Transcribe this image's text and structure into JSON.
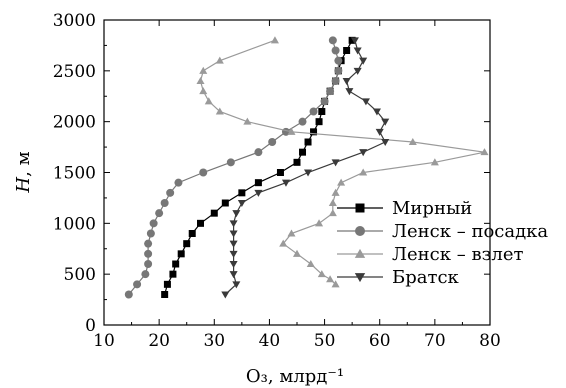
{
  "chart_data": {
    "type": "line",
    "xlabel": "O₃, млрд⁻¹",
    "ylabel_symbol": "H",
    "ylabel_unit": ", м",
    "xlim": [
      10,
      80
    ],
    "ylim": [
      0,
      3000
    ],
    "xticks": [
      10,
      20,
      30,
      40,
      50,
      60,
      70,
      80
    ],
    "yticks": [
      0,
      500,
      1000,
      1500,
      2000,
      2500,
      3000
    ],
    "grid": false,
    "legend_position": "right",
    "series": [
      {
        "name": "Мирный",
        "marker": "square",
        "color": "#000000",
        "points": [
          [
            21,
            300
          ],
          [
            21.5,
            400
          ],
          [
            22.5,
            500
          ],
          [
            23,
            600
          ],
          [
            24,
            700
          ],
          [
            25,
            800
          ],
          [
            26,
            900
          ],
          [
            27.5,
            1000
          ],
          [
            30,
            1100
          ],
          [
            32,
            1200
          ],
          [
            35,
            1300
          ],
          [
            38,
            1400
          ],
          [
            42,
            1500
          ],
          [
            45,
            1600
          ],
          [
            46,
            1700
          ],
          [
            47,
            1800
          ],
          [
            48,
            1900
          ],
          [
            49,
            2000
          ],
          [
            49.5,
            2100
          ],
          [
            50,
            2200
          ],
          [
            51,
            2300
          ],
          [
            52,
            2400
          ],
          [
            52.5,
            2500
          ],
          [
            53,
            2600
          ],
          [
            54,
            2700
          ],
          [
            55,
            2800
          ]
        ]
      },
      {
        "name": "Ленск – посадка",
        "marker": "circle",
        "color": "#777777",
        "points": [
          [
            14.5,
            300
          ],
          [
            16,
            400
          ],
          [
            17.5,
            500
          ],
          [
            18,
            600
          ],
          [
            18,
            700
          ],
          [
            18,
            800
          ],
          [
            18.5,
            900
          ],
          [
            19,
            1000
          ],
          [
            20,
            1100
          ],
          [
            21,
            1200
          ],
          [
            22,
            1300
          ],
          [
            23.5,
            1400
          ],
          [
            28,
            1500
          ],
          [
            33,
            1600
          ],
          [
            38,
            1700
          ],
          [
            40.5,
            1800
          ],
          [
            43,
            1900
          ],
          [
            46,
            2000
          ],
          [
            48,
            2100
          ],
          [
            50,
            2200
          ],
          [
            51,
            2300
          ],
          [
            52,
            2400
          ],
          [
            52.5,
            2500
          ],
          [
            52.5,
            2600
          ],
          [
            52,
            2700
          ],
          [
            51.5,
            2800
          ]
        ]
      },
      {
        "name": "Ленск – взлет",
        "marker": "triangle-up",
        "color": "#9a9a9a",
        "points": [
          [
            52,
            400
          ],
          [
            51,
            450
          ],
          [
            49.5,
            500
          ],
          [
            47.5,
            600
          ],
          [
            45,
            700
          ],
          [
            42.5,
            800
          ],
          [
            44,
            900
          ],
          [
            49,
            1000
          ],
          [
            51.5,
            1100
          ],
          [
            51.5,
            1200
          ],
          [
            52,
            1300
          ],
          [
            53,
            1400
          ],
          [
            57,
            1500
          ],
          [
            70,
            1600
          ],
          [
            79,
            1700
          ],
          [
            66,
            1800
          ],
          [
            44,
            1900
          ],
          [
            36,
            2000
          ],
          [
            31,
            2100
          ],
          [
            29,
            2200
          ],
          [
            28,
            2300
          ],
          [
            27.5,
            2400
          ],
          [
            28,
            2500
          ],
          [
            31,
            2600
          ],
          [
            41,
            2800
          ]
        ]
      },
      {
        "name": "Братск",
        "marker": "triangle-down",
        "color": "#3a3a3a",
        "points": [
          [
            32,
            300
          ],
          [
            34,
            400
          ],
          [
            33.5,
            500
          ],
          [
            33.5,
            600
          ],
          [
            33.5,
            700
          ],
          [
            33.5,
            800
          ],
          [
            33.5,
            900
          ],
          [
            33.5,
            1000
          ],
          [
            34,
            1100
          ],
          [
            35,
            1200
          ],
          [
            38,
            1300
          ],
          [
            43,
            1400
          ],
          [
            47,
            1500
          ],
          [
            52,
            1600
          ],
          [
            57,
            1700
          ],
          [
            61,
            1800
          ],
          [
            60,
            1900
          ],
          [
            61,
            2000
          ],
          [
            59.5,
            2100
          ],
          [
            57.5,
            2200
          ],
          [
            54.5,
            2300
          ],
          [
            54,
            2400
          ],
          [
            56,
            2500
          ],
          [
            57,
            2600
          ],
          [
            56,
            2700
          ],
          [
            55.5,
            2800
          ]
        ]
      }
    ]
  }
}
